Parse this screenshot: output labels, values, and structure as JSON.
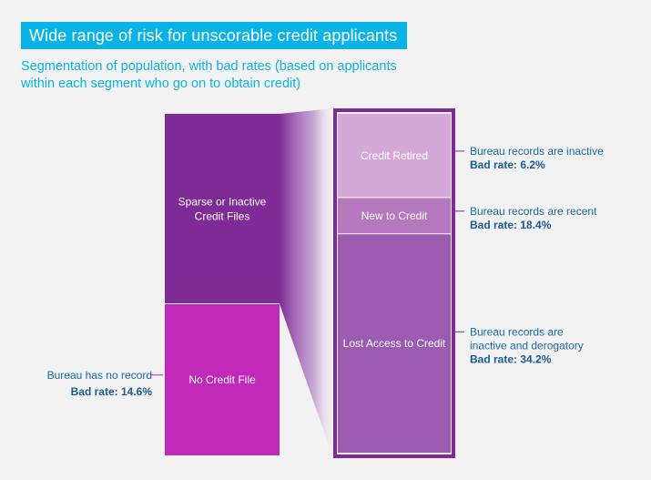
{
  "title": "Wide range of risk for unscorable credit applicants",
  "subtitle_line1": "Segmentation of population, with bad rates (based on applicants",
  "subtitle_line2": "within each segment who go on to obtain credit)",
  "colors": {
    "title_bg": "#0ab3e6",
    "sparse": "#7e2b96",
    "no_file": "#c129b9",
    "credit_retired": "#d4a9d8",
    "new_to_credit": "#b577be",
    "lost_access": "#9b5bb0",
    "frame": "#7e2b96",
    "note_text": "#1a6aa6"
  },
  "chart_data": {
    "type": "stacked-bar",
    "left_bar": [
      {
        "name": "Sparse or Inactive Credit Files",
        "label_lines": [
          "Sparse or Inactive",
          "Credit Files"
        ],
        "share": 0.556
      },
      {
        "name": "No Credit File",
        "label_lines": [
          "No Credit File"
        ],
        "share": 0.444,
        "note_lines": [
          "Bureau has no record"
        ],
        "bad_rate": "Bad rate: 14.6%"
      }
    ],
    "right_bar": [
      {
        "name": "Credit Retired",
        "label_lines": [
          "Credit Retired"
        ],
        "share": 0.247,
        "note_lines": [
          "Bureau records are inactive"
        ],
        "bad_rate": "Bad rate: 6.2%"
      },
      {
        "name": "New to Credit",
        "label_lines": [
          "New to Credit"
        ],
        "share": 0.107,
        "note_lines": [
          "Bureau records are recent"
        ],
        "bad_rate": "Bad rate: 18.4%"
      },
      {
        "name": "Lost Access to Credit",
        "label_lines": [
          "Lost Access to Credit"
        ],
        "share": 0.646,
        "note_lines": [
          "Bureau records are",
          "inactive and derogatory"
        ],
        "bad_rate": "Bad rate: 34.2%"
      }
    ]
  }
}
